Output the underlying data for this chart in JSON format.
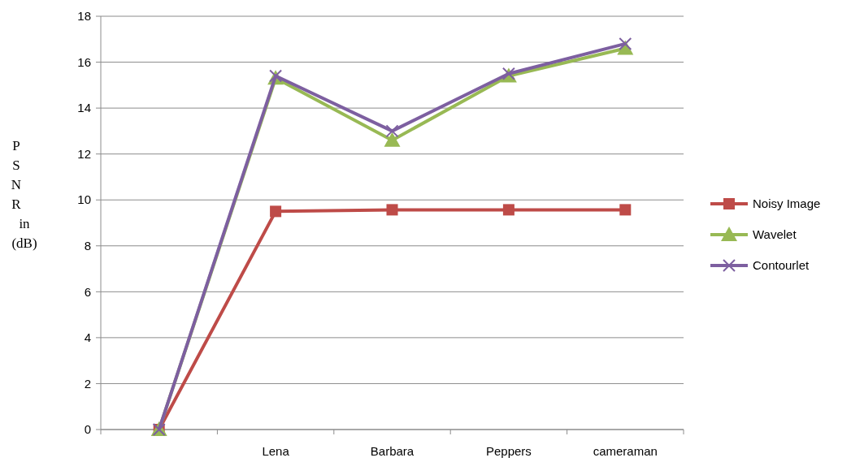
{
  "chart_data": {
    "type": "line",
    "ylabel": "P S N R in (dB)",
    "categories": [
      null,
      "Lena",
      "Barbara",
      "Peppers",
      "cameraman"
    ],
    "ylim": [
      0,
      18
    ],
    "yticks": [
      0,
      2,
      4,
      6,
      8,
      10,
      12,
      14,
      16,
      18
    ],
    "grid": "y",
    "legend": "right",
    "series": [
      {
        "name": "Noisy Image",
        "color": "#be4b48",
        "marker": "square",
        "values": [
          0,
          9.5,
          9.57,
          9.57,
          9.57
        ]
      },
      {
        "name": "Wavelet",
        "color": "#98b954",
        "marker": "triangle",
        "values": [
          0,
          15.3,
          12.6,
          15.4,
          16.6
        ]
      },
      {
        "name": "Contourlet",
        "color": "#7d5fa0",
        "marker": "cross",
        "values": [
          0,
          15.4,
          13.0,
          15.5,
          16.8
        ]
      }
    ]
  }
}
